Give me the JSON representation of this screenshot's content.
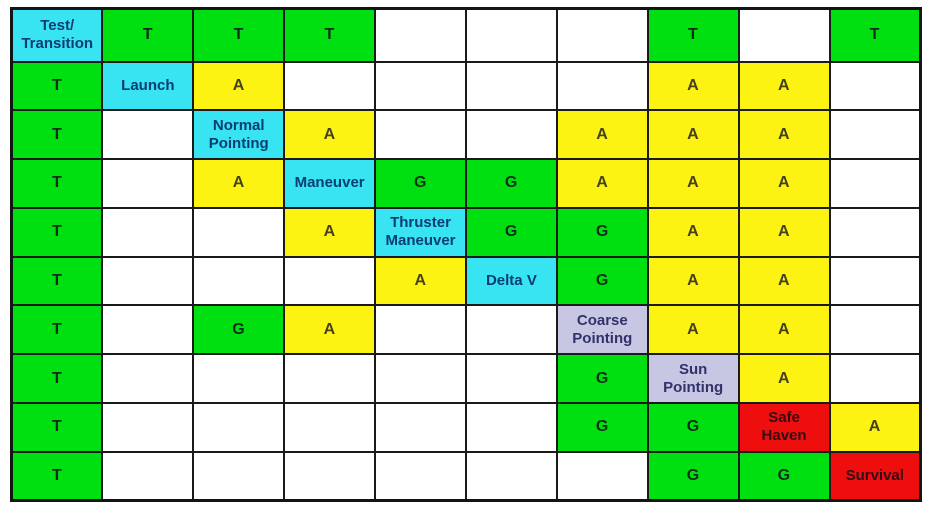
{
  "chart_data": {
    "type": "table",
    "title": "",
    "grid_size": {
      "rows": 10,
      "cols": 10
    },
    "diagonal_modes": [
      "Test/Transition",
      "Launch",
      "Normal Pointing",
      "Maneuver",
      "Thruster Maneuver",
      "Delta V",
      "Coarse Pointing",
      "Sun Pointing",
      "Safe Haven",
      "Survival"
    ],
    "legend_letters": [
      "T",
      "A",
      "G"
    ],
    "cell_styles": {
      "g": {
        "bg": "#00e011",
        "fg": "#0d2f16",
        "meaning": "green-letter-cell"
      },
      "y": {
        "bg": "#fdf312",
        "fg": "#46411c",
        "meaning": "yellow-letter-cell"
      },
      "c": {
        "bg": "#38e3f2",
        "fg": "#0a3d74",
        "meaning": "cyan-mode-cell"
      },
      "l": {
        "bg": "#c7c7e3",
        "fg": "#31316b",
        "meaning": "lavender-mode-cell"
      },
      "r": {
        "bg": "#ee0e0e",
        "fg": "#330d14",
        "meaning": "red-mode-cell"
      },
      "b": {
        "bg": "#ffffff",
        "fg": "#000000",
        "meaning": "empty-cell"
      }
    },
    "border_color": "#1a1a1a",
    "rows": [
      [
        {
          "t": "Test/\nTransition",
          "k": "c"
        },
        {
          "t": "T",
          "k": "g"
        },
        {
          "t": "T",
          "k": "g"
        },
        {
          "t": "T",
          "k": "g"
        },
        {
          "t": "",
          "k": "b"
        },
        {
          "t": "",
          "k": "b"
        },
        {
          "t": "",
          "k": "b"
        },
        {
          "t": "T",
          "k": "g"
        },
        {
          "t": "",
          "k": "b"
        },
        {
          "t": "T",
          "k": "g"
        }
      ],
      [
        {
          "t": "T",
          "k": "g"
        },
        {
          "t": "Launch",
          "k": "c"
        },
        {
          "t": "A",
          "k": "y"
        },
        {
          "t": "",
          "k": "b"
        },
        {
          "t": "",
          "k": "b"
        },
        {
          "t": "",
          "k": "b"
        },
        {
          "t": "",
          "k": "b"
        },
        {
          "t": "A",
          "k": "y"
        },
        {
          "t": "A",
          "k": "y"
        },
        {
          "t": "",
          "k": "b"
        }
      ],
      [
        {
          "t": "T",
          "k": "g"
        },
        {
          "t": "",
          "k": "b"
        },
        {
          "t": "Normal\nPointing",
          "k": "c"
        },
        {
          "t": "A",
          "k": "y"
        },
        {
          "t": "",
          "k": "b"
        },
        {
          "t": "",
          "k": "b"
        },
        {
          "t": "A",
          "k": "y"
        },
        {
          "t": "A",
          "k": "y"
        },
        {
          "t": "A",
          "k": "y"
        },
        {
          "t": "",
          "k": "b"
        }
      ],
      [
        {
          "t": "T",
          "k": "g"
        },
        {
          "t": "",
          "k": "b"
        },
        {
          "t": "A",
          "k": "y"
        },
        {
          "t": "Maneuver",
          "k": "c"
        },
        {
          "t": "G",
          "k": "g"
        },
        {
          "t": "G",
          "k": "g"
        },
        {
          "t": "A",
          "k": "y"
        },
        {
          "t": "A",
          "k": "y"
        },
        {
          "t": "A",
          "k": "y"
        },
        {
          "t": "",
          "k": "b"
        }
      ],
      [
        {
          "t": "T",
          "k": "g"
        },
        {
          "t": "",
          "k": "b"
        },
        {
          "t": "",
          "k": "b"
        },
        {
          "t": "A",
          "k": "y"
        },
        {
          "t": "Thruster\nManeuver",
          "k": "c"
        },
        {
          "t": "G",
          "k": "g"
        },
        {
          "t": "G",
          "k": "g"
        },
        {
          "t": "A",
          "k": "y"
        },
        {
          "t": "A",
          "k": "y"
        },
        {
          "t": "",
          "k": "b"
        }
      ],
      [
        {
          "t": "T",
          "k": "g"
        },
        {
          "t": "",
          "k": "b"
        },
        {
          "t": "",
          "k": "b"
        },
        {
          "t": "",
          "k": "b"
        },
        {
          "t": "A",
          "k": "y"
        },
        {
          "t": "Delta V",
          "k": "c"
        },
        {
          "t": "G",
          "k": "g"
        },
        {
          "t": "A",
          "k": "y"
        },
        {
          "t": "A",
          "k": "y"
        },
        {
          "t": "",
          "k": "b"
        }
      ],
      [
        {
          "t": "T",
          "k": "g"
        },
        {
          "t": "",
          "k": "b"
        },
        {
          "t": "G",
          "k": "g"
        },
        {
          "t": "A",
          "k": "y"
        },
        {
          "t": "",
          "k": "b"
        },
        {
          "t": "",
          "k": "b"
        },
        {
          "t": "Coarse\nPointing",
          "k": "l"
        },
        {
          "t": "A",
          "k": "y"
        },
        {
          "t": "A",
          "k": "y"
        },
        {
          "t": "",
          "k": "b"
        }
      ],
      [
        {
          "t": "T",
          "k": "g"
        },
        {
          "t": "",
          "k": "b"
        },
        {
          "t": "",
          "k": "b"
        },
        {
          "t": "",
          "k": "b"
        },
        {
          "t": "",
          "k": "b"
        },
        {
          "t": "",
          "k": "b"
        },
        {
          "t": "G",
          "k": "g"
        },
        {
          "t": "Sun\nPointing",
          "k": "l"
        },
        {
          "t": "A",
          "k": "y"
        },
        {
          "t": "",
          "k": "b"
        }
      ],
      [
        {
          "t": "T",
          "k": "g"
        },
        {
          "t": "",
          "k": "b"
        },
        {
          "t": "",
          "k": "b"
        },
        {
          "t": "",
          "k": "b"
        },
        {
          "t": "",
          "k": "b"
        },
        {
          "t": "",
          "k": "b"
        },
        {
          "t": "G",
          "k": "g"
        },
        {
          "t": "G",
          "k": "g"
        },
        {
          "t": "Safe\nHaven",
          "k": "r"
        },
        {
          "t": "A",
          "k": "y"
        }
      ],
      [
        {
          "t": "T",
          "k": "g"
        },
        {
          "t": "",
          "k": "b"
        },
        {
          "t": "",
          "k": "b"
        },
        {
          "t": "",
          "k": "b"
        },
        {
          "t": "",
          "k": "b"
        },
        {
          "t": "",
          "k": "b"
        },
        {
          "t": "",
          "k": "b"
        },
        {
          "t": "G",
          "k": "g"
        },
        {
          "t": "G",
          "k": "g"
        },
        {
          "t": "Survival",
          "k": "r"
        }
      ]
    ]
  }
}
